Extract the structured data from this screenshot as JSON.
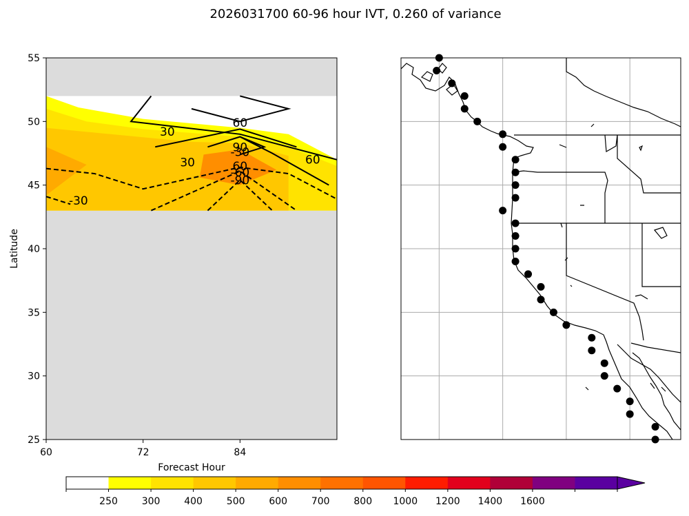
{
  "figure_title": "2026031700 60-96 hour IVT, 0.260 of variance",
  "chart_data": [
    {
      "type": "contour",
      "title": "",
      "xlabel": "Forecast Hour",
      "ylabel": "Latitude",
      "xlim": [
        60,
        96
      ],
      "ylim": [
        25,
        55
      ],
      "x_ticks": [
        60,
        72,
        84
      ],
      "y_ticks": [
        25,
        30,
        35,
        40,
        45,
        50,
        55
      ],
      "x_tick_labels": [
        "60",
        "72",
        "84"
      ],
      "y_tick_labels": [
        "25",
        "30",
        "35",
        "40",
        "45",
        "50",
        "55"
      ],
      "data_lat_range": [
        43,
        52
      ],
      "missing_color": "#dcdcdc",
      "filled_regions": [
        {
          "level": 250,
          "color": "#ffff00",
          "points": [
            [
              60,
              52
            ],
            [
              64,
              51.1
            ],
            [
              72,
              50.2
            ],
            [
              84,
              49.5
            ],
            [
              90,
              49
            ],
            [
              96,
              47
            ]
          ]
        },
        {
          "level": 300,
          "color": "#ffe300",
          "points": [
            [
              60,
              51
            ],
            [
              65,
              50
            ],
            [
              72,
              49.4
            ],
            [
              84,
              48.8
            ],
            [
              90,
              48
            ],
            [
              96,
              46.5
            ]
          ]
        },
        {
          "level": 400,
          "color": "#ffc700",
          "points": [
            [
              60,
              49.5
            ],
            [
              68,
              49
            ],
            [
              78,
              48.4
            ],
            [
              84,
              48.3
            ],
            [
              90,
              47.3
            ]
          ]
        },
        {
          "level": 500,
          "color": "#ffaa00",
          "points": [
            [
              60,
              48
            ],
            [
              65,
              46.6
            ],
            [
              60,
              44.2
            ]
          ]
        },
        {
          "level": 600,
          "color": "#ff8e00",
          "points": [
            [
              79.5,
              47.4
            ],
            [
              84,
              47.8
            ],
            [
              88.5,
              46.2
            ],
            [
              84,
              45
            ],
            [
              79,
              45.6
            ]
          ]
        }
      ],
      "contours": [
        {
          "label": "60",
          "style": "solid",
          "value": 60,
          "points": [
            [
              73,
              52
            ],
            [
              70.5,
              50
            ],
            [
              84,
              49
            ],
            [
              96,
              47
            ]
          ]
        },
        {
          "label": "60",
          "style": "solid",
          "value": 60,
          "points": [
            [
              78,
              51
            ],
            [
              84,
              50
            ],
            [
              90,
              51
            ],
            [
              84,
              52
            ]
          ]
        },
        {
          "label": "30",
          "style": "solid",
          "value": 30,
          "points": [
            [
              73.5,
              48
            ],
            [
              84,
              49.4
            ],
            [
              91,
              48
            ]
          ]
        },
        {
          "label": "90",
          "style": "solid",
          "value": 90,
          "points": [
            [
              80,
              48
            ],
            [
              84,
              48.8
            ],
            [
              87,
              48
            ],
            [
              84,
              47.4
            ]
          ]
        },
        {
          "label": "60",
          "style": "solid",
          "value": 60,
          "points": [
            [
              84,
              48.8
            ],
            [
              88,
              47.5
            ],
            [
              95,
              45
            ]
          ]
        },
        {
          "label": "-30",
          "style": "dashed",
          "value": -30,
          "points": [
            [
              60,
              46.3
            ],
            [
              66,
              45.9
            ],
            [
              72,
              44.7
            ],
            [
              84,
              46.4
            ],
            [
              90,
              45.9
            ],
            [
              96,
              43.9
            ]
          ]
        },
        {
          "label": "-60",
          "style": "dashed",
          "value": -60,
          "points": [
            [
              73,
              43
            ],
            [
              84,
              46.1
            ],
            [
              91,
              43
            ]
          ]
        },
        {
          "label": "-90",
          "style": "dashed",
          "value": -90,
          "points": [
            [
              80,
              43
            ],
            [
              84,
              45.4
            ],
            [
              88,
              43
            ]
          ]
        },
        {
          "label": "-30",
          "style": "dashed",
          "value": -30,
          "points": [
            [
              60,
              44.1
            ],
            [
              63,
              43.5
            ]
          ]
        }
      ],
      "contour_labels": [
        "30",
        "30",
        "60",
        "90",
        "60",
        "60",
        "-30",
        "-30",
        "-60",
        "-90"
      ],
      "contour_label_positions": [
        [
          75,
          49.2
        ],
        [
          77.5,
          46.8
        ],
        [
          84,
          49.9
        ],
        [
          84,
          48
        ],
        [
          84,
          46.5
        ],
        [
          93,
          47
        ],
        [
          64,
          43.8
        ],
        [
          84,
          47.6
        ],
        [
          84,
          46
        ],
        [
          84,
          45.4
        ]
      ]
    },
    {
      "type": "map",
      "title": "",
      "lon_range": [
        -136,
        -114
      ],
      "lat_range": [
        25,
        55
      ],
      "grid_lons": [
        -133,
        -128,
        -123,
        -118
      ],
      "grid_lats": [
        30,
        35,
        40,
        45,
        50
      ],
      "points": [
        {
          "lat": 55,
          "lon": -133
        },
        {
          "lat": 54,
          "lon": -133.2
        },
        {
          "lat": 53,
          "lon": -132
        },
        {
          "lat": 52,
          "lon": -131
        },
        {
          "lat": 51,
          "lon": -131
        },
        {
          "lat": 50,
          "lon": -130
        },
        {
          "lat": 49,
          "lon": -128
        },
        {
          "lat": 48,
          "lon": -128
        },
        {
          "lat": 47,
          "lon": -127
        },
        {
          "lat": 46,
          "lon": -127
        },
        {
          "lat": 45,
          "lon": -127
        },
        {
          "lat": 44,
          "lon": -127
        },
        {
          "lat": 43,
          "lon": -128
        },
        {
          "lat": 42,
          "lon": -127
        },
        {
          "lat": 41,
          "lon": -127
        },
        {
          "lat": 40,
          "lon": -127
        },
        {
          "lat": 39,
          "lon": -127
        },
        {
          "lat": 38,
          "lon": -126
        },
        {
          "lat": 37,
          "lon": -125
        },
        {
          "lat": 36,
          "lon": -125
        },
        {
          "lat": 35,
          "lon": -124
        },
        {
          "lat": 34,
          "lon": -123
        },
        {
          "lat": 33,
          "lon": -121
        },
        {
          "lat": 32,
          "lon": -121
        },
        {
          "lat": 31,
          "lon": -120
        },
        {
          "lat": 30,
          "lon": -120
        },
        {
          "lat": 29,
          "lon": -119
        },
        {
          "lat": 28,
          "lon": -118
        },
        {
          "lat": 27,
          "lon": -118
        },
        {
          "lat": 26,
          "lon": -116
        },
        {
          "lat": 25,
          "lon": -116
        }
      ]
    }
  ],
  "colorbar": {
    "labels": [
      "250",
      "300",
      "400",
      "500",
      "600",
      "700",
      "800",
      "1000",
      "1200",
      "1400",
      "1600"
    ],
    "colors": [
      "#ffffff",
      "#ffff00",
      "#ffe300",
      "#ffc700",
      "#ffaa00",
      "#ff8e00",
      "#ff7100",
      "#ff5500",
      "#ff1c00",
      "#e2001c",
      "#b00038",
      "#800080",
      "#5a00a0"
    ],
    "extend": "max"
  }
}
